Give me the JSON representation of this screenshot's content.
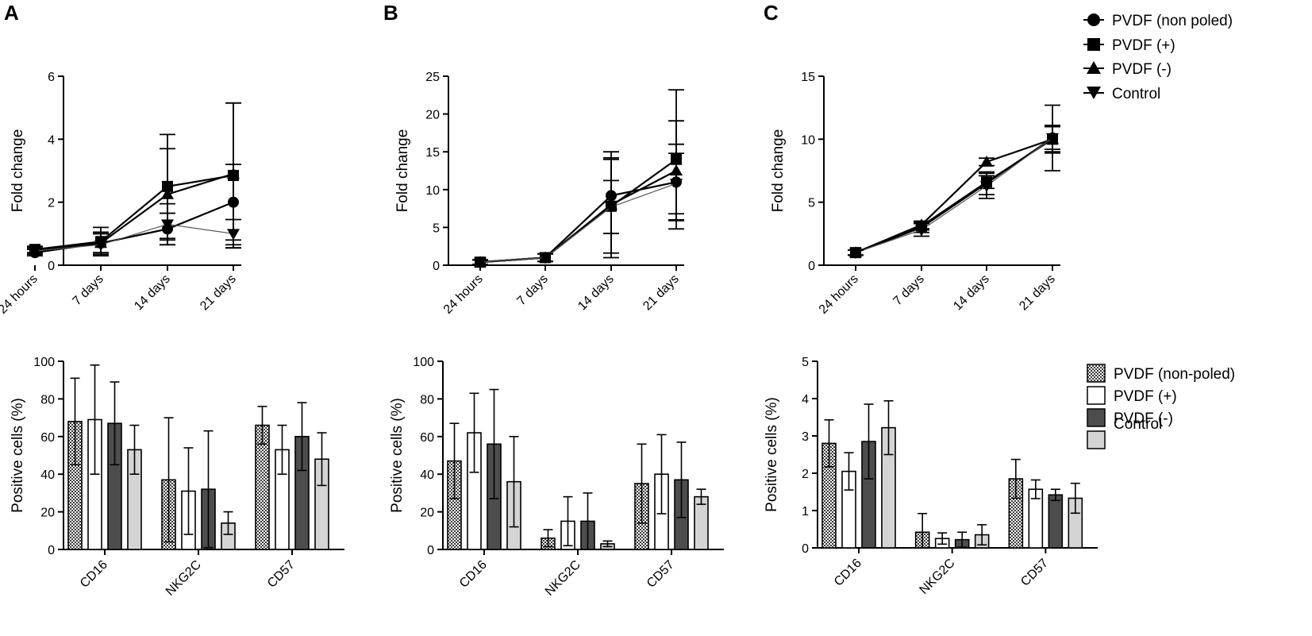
{
  "figure": {
    "panel_letters": [
      "A",
      "B",
      "C"
    ],
    "line_legend": [
      {
        "label": "PVDF (non poled)",
        "marker": "circle"
      },
      {
        "label": "PVDF (+)",
        "marker": "square"
      },
      {
        "label": "PVDF (-)",
        "marker": "triangle-up"
      },
      {
        "label": "Control",
        "marker": "triangle-down"
      }
    ],
    "bar_legend": [
      {
        "label": "PVDF (non-poled)",
        "fill": "hatch"
      },
      {
        "label": "PVDF (+)",
        "fill": "#ffffff"
      },
      {
        "label": "PVDF (-)",
        "fill": "#4d4d4d"
      },
      {
        "label": "Control",
        "fill": "#d4d4d4"
      }
    ]
  },
  "chart_data": [
    {
      "id": "A-top",
      "type": "line",
      "panel": "A",
      "ylabel": "Fold change",
      "ylim": [
        0,
        6
      ],
      "yticks": [
        0,
        2,
        4,
        6
      ],
      "categories": [
        "24 hours",
        "7 days",
        "14 days",
        "21 days"
      ],
      "series": [
        {
          "name": "PVDF (non poled)",
          "marker": "circle",
          "values": [
            0.4,
            0.7,
            1.15,
            2.0
          ],
          "err": [
            0.1,
            0.3,
            0.5,
            1.2
          ]
        },
        {
          "name": "PVDF (+)",
          "marker": "square",
          "values": [
            0.5,
            0.75,
            2.5,
            2.85
          ],
          "err": [
            0.1,
            0.45,
            1.65,
            2.3
          ]
        },
        {
          "name": "PVDF (-)",
          "marker": "triangle-up",
          "values": [
            0.45,
            0.7,
            2.25,
            2.9
          ],
          "err": [
            0.1,
            0.35,
            1.45,
            2.25
          ]
        },
        {
          "name": "Control",
          "marker": "triangle-down",
          "values": [
            0.45,
            0.65,
            1.3,
            1.0
          ],
          "err": [
            0.1,
            0.35,
            0.65,
            0.45
          ]
        }
      ]
    },
    {
      "id": "B-top",
      "type": "line",
      "panel": "B",
      "ylabel": "Fold change",
      "ylim": [
        0,
        25
      ],
      "yticks": [
        0,
        5,
        10,
        15,
        20,
        25
      ],
      "categories": [
        "24 hours",
        "7 days",
        "14 days",
        "21 days"
      ],
      "series": [
        {
          "name": "PVDF (non poled)",
          "marker": "circle",
          "values": [
            0.4,
            1.0,
            9.2,
            11.0
          ],
          "err": [
            0.3,
            0.5,
            5.0,
            5.0
          ]
        },
        {
          "name": "PVDF (+)",
          "marker": "square",
          "values": [
            0.4,
            1.0,
            7.8,
            14.0
          ],
          "err": [
            0.3,
            0.5,
            6.2,
            9.2
          ]
        },
        {
          "name": "PVDF (-)",
          "marker": "triangle-up",
          "values": [
            0.4,
            1.0,
            8.0,
            12.5
          ],
          "err": [
            0.3,
            0.5,
            7.0,
            6.6
          ]
        },
        {
          "name": "Control",
          "marker": "triangle-down",
          "values": [
            0.4,
            1.0,
            7.7,
            10.8
          ],
          "err": [
            0.3,
            0.5,
            3.5,
            4.0
          ]
        }
      ]
    },
    {
      "id": "C-top",
      "type": "line",
      "panel": "C",
      "ylabel": "Fold change",
      "ylim": [
        0,
        15
      ],
      "yticks": [
        0,
        5,
        10,
        15
      ],
      "categories": [
        "24 hours",
        "7 days",
        "14 days",
        "21 days"
      ],
      "series": [
        {
          "name": "PVDF (non poled)",
          "marker": "circle",
          "values": [
            1.0,
            3.0,
            6.5,
            10.1
          ],
          "err": [
            0.2,
            0.4,
            0.9,
            0.9
          ]
        },
        {
          "name": "PVDF (+)",
          "marker": "square",
          "values": [
            1.0,
            3.1,
            6.6,
            10.0
          ],
          "err": [
            0.2,
            0.3,
            0.5,
            1.1
          ]
        },
        {
          "name": "PVDF (-)",
          "marker": "triangle-up",
          "values": [
            1.0,
            3.2,
            8.2,
            10.0
          ],
          "err": [
            0.2,
            0.3,
            0.3,
            1.0
          ]
        },
        {
          "name": "Control",
          "marker": "triangle-down",
          "values": [
            1.0,
            2.8,
            6.3,
            10.1
          ],
          "err": [
            0.2,
            0.5,
            1.0,
            2.6
          ]
        }
      ]
    },
    {
      "id": "A-bottom",
      "type": "bar",
      "panel": "A",
      "ylabel": "Positive cells (%)",
      "ylim": [
        0,
        100
      ],
      "yticks": [
        0,
        20,
        40,
        60,
        80,
        100
      ],
      "categories": [
        "CD16",
        "NKG2C",
        "CD57"
      ],
      "series": [
        {
          "name": "PVDF (non-poled)",
          "values": [
            68,
            37,
            66
          ],
          "err": [
            23,
            33,
            10
          ]
        },
        {
          "name": "PVDF (+)",
          "values": [
            69,
            31,
            53
          ],
          "err": [
            29,
            23,
            13
          ]
        },
        {
          "name": "PVDF (-)",
          "values": [
            67,
            32,
            60
          ],
          "err": [
            22,
            31,
            18
          ]
        },
        {
          "name": "Control",
          "values": [
            53,
            14,
            48
          ],
          "err": [
            13,
            6,
            14
          ]
        }
      ]
    },
    {
      "id": "B-bottom",
      "type": "bar",
      "panel": "B",
      "ylabel": "Positive cells (%)",
      "ylim": [
        0,
        100
      ],
      "yticks": [
        0,
        20,
        40,
        60,
        80,
        100
      ],
      "categories": [
        "CD16",
        "NKG2C",
        "CD57"
      ],
      "series": [
        {
          "name": "PVDF (non-poled)",
          "values": [
            47,
            6,
            35
          ],
          "err": [
            20,
            4.5,
            21
          ]
        },
        {
          "name": "PVDF (+)",
          "values": [
            62,
            15,
            40
          ],
          "err": [
            21,
            13,
            21
          ]
        },
        {
          "name": "PVDF (-)",
          "values": [
            56,
            15,
            37
          ],
          "err": [
            29,
            15,
            20
          ]
        },
        {
          "name": "Control",
          "values": [
            36,
            3,
            28
          ],
          "err": [
            24,
            1.5,
            4
          ]
        }
      ]
    },
    {
      "id": "C-bottom",
      "type": "bar",
      "panel": "C",
      "ylabel": "Positive cells (%)",
      "ylim": [
        0,
        5
      ],
      "yticks": [
        0,
        1,
        2,
        3,
        4,
        5
      ],
      "categories": [
        "CD16",
        "NKG2C",
        "CD57"
      ],
      "series": [
        {
          "name": "PVDF (non-poled)",
          "values": [
            2.8,
            0.42,
            1.85
          ],
          "err": [
            0.63,
            0.5,
            0.52
          ]
        },
        {
          "name": "PVDF (+)",
          "values": [
            2.05,
            0.25,
            1.57
          ],
          "err": [
            0.5,
            0.15,
            0.25
          ]
        },
        {
          "name": "PVDF (-)",
          "values": [
            2.85,
            0.22,
            1.42
          ],
          "err": [
            1.0,
            0.2,
            0.15
          ]
        },
        {
          "name": "Control",
          "values": [
            3.22,
            0.35,
            1.33
          ],
          "err": [
            0.72,
            0.27,
            0.4
          ]
        }
      ]
    }
  ]
}
